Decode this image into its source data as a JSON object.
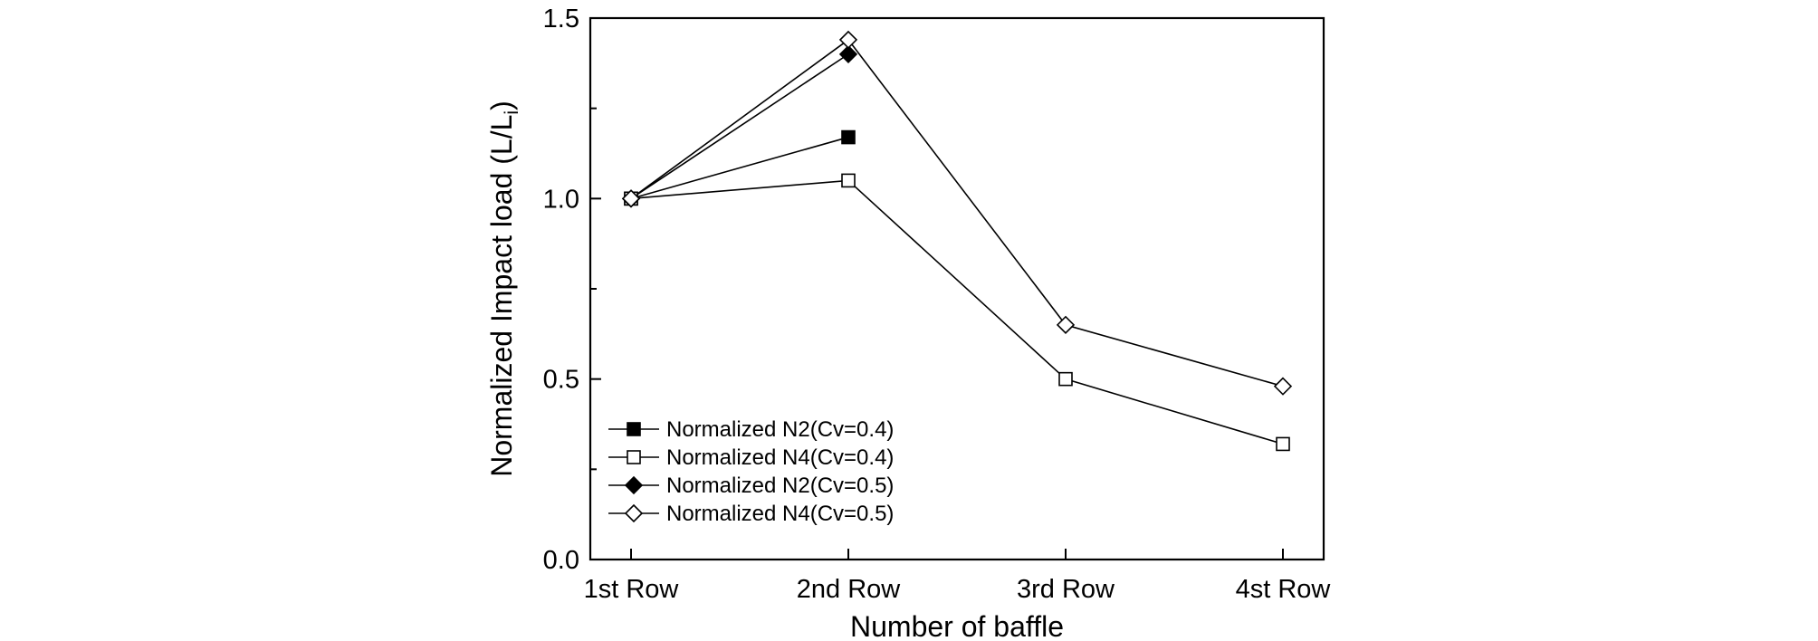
{
  "chart_data": {
    "type": "line",
    "xlabel": "Number of baffle",
    "ylabel_main": "Normalized Impact load (L/L",
    "ylabel_sub": "i",
    "ylabel_close": ")",
    "ylim": [
      0,
      1.5
    ],
    "yticks": [
      0,
      0.5,
      1.0,
      1.5
    ],
    "ytick_labels": [
      "0.0",
      "0.5",
      "1.0",
      "1.5"
    ],
    "categories": [
      "1st Row",
      "2nd Row",
      "3rd Row",
      "4st Row"
    ],
    "legend_position": "bottom-left",
    "series": [
      {
        "name": "Normalized N2(Cv=0.4)",
        "marker": "square-filled",
        "values": [
          1.0,
          1.17,
          null,
          null
        ]
      },
      {
        "name": "Normalized N4(Cv=0.4)",
        "marker": "square-open",
        "values": [
          1.0,
          1.05,
          0.5,
          0.32
        ]
      },
      {
        "name": "Normalized N2(Cv=0.5)",
        "marker": "diamond-filled",
        "values": [
          1.0,
          1.4,
          null,
          null
        ]
      },
      {
        "name": "Normalized N4(Cv=0.5)",
        "marker": "diamond-open",
        "values": [
          1.0,
          1.44,
          0.65,
          0.48
        ]
      }
    ]
  }
}
